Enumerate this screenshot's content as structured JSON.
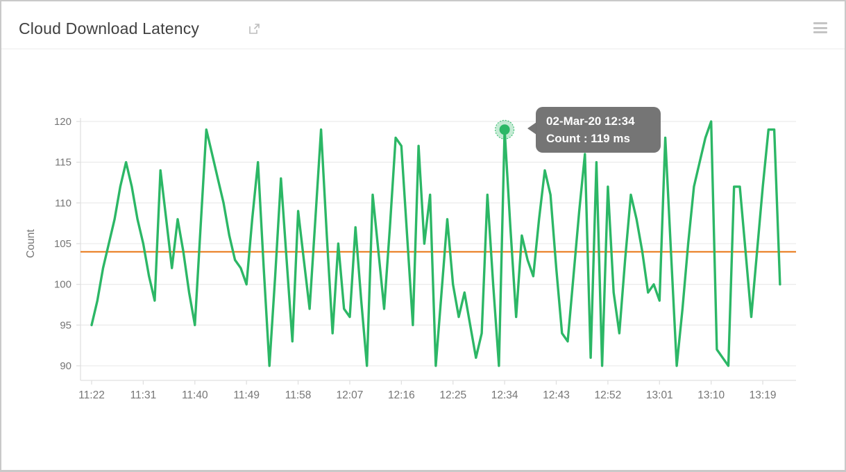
{
  "header": {
    "title": "Cloud Download Latency"
  },
  "tooltip": {
    "line1": "02-Mar-20 12:34",
    "line2": "Count : 119 ms"
  },
  "chart_data": {
    "type": "line",
    "title": "Cloud Download Latency",
    "xlabel": "",
    "ylabel": "Count",
    "unit": "ms",
    "x_start": "11:22",
    "x_interval_minutes": 1,
    "x_tick_labels": [
      "11:22",
      "11:31",
      "11:40",
      "11:49",
      "11:58",
      "12:07",
      "12:16",
      "12:25",
      "12:34",
      "12:43",
      "12:52",
      "13:01",
      "13:10",
      "13:19"
    ],
    "y_ticks": [
      90,
      95,
      100,
      105,
      110,
      115,
      120
    ],
    "ylim": [
      90,
      120
    ],
    "grid": "horizontal",
    "legend": "none",
    "series": [
      {
        "name": "Count",
        "color": "#2cb766",
        "values": [
          95,
          98,
          102,
          105,
          108,
          112,
          115,
          112,
          108,
          105,
          101,
          98,
          114,
          108,
          102,
          108,
          104,
          99,
          95,
          107,
          119,
          116,
          113,
          110,
          106,
          103,
          102,
          100,
          108,
          115,
          102,
          90,
          101,
          113,
          103,
          93,
          109,
          103,
          97,
          108,
          119,
          106,
          94,
          105,
          97,
          96,
          107,
          98,
          90,
          111,
          104,
          97,
          107,
          118,
          117,
          106,
          95,
          117,
          105,
          111,
          90,
          99,
          108,
          100,
          96,
          99,
          95,
          91,
          94,
          111,
          100,
          90,
          119,
          107,
          96,
          106,
          103,
          101,
          108,
          114,
          111,
          102,
          94,
          93,
          101,
          109,
          116,
          91,
          115,
          90,
          112,
          99,
          94,
          103,
          111,
          108,
          104,
          99,
          100,
          98,
          118,
          104,
          90,
          97,
          105,
          112,
          115,
          118,
          120,
          92,
          91,
          90,
          112,
          112,
          104,
          96,
          104,
          112,
          119,
          119,
          100
        ]
      }
    ],
    "threshold": {
      "value": 104,
      "color": "#e87613"
    },
    "highlight": {
      "time": "12:34",
      "value": 119,
      "index": 72
    }
  },
  "colors": {
    "line": "#2cb766",
    "highlight_halo": "rgba(44,183,102,0.28)",
    "threshold": "#e87613",
    "tooltip_bg": "#717171",
    "tooltip_text": "#ffffff",
    "axis_text": "#757575",
    "grid_line": "#ececec",
    "axis_line": "#e0e0e0",
    "title_text": "#404040",
    "icon": "#c4c4c4",
    "card_border": "#c9c9c9"
  }
}
